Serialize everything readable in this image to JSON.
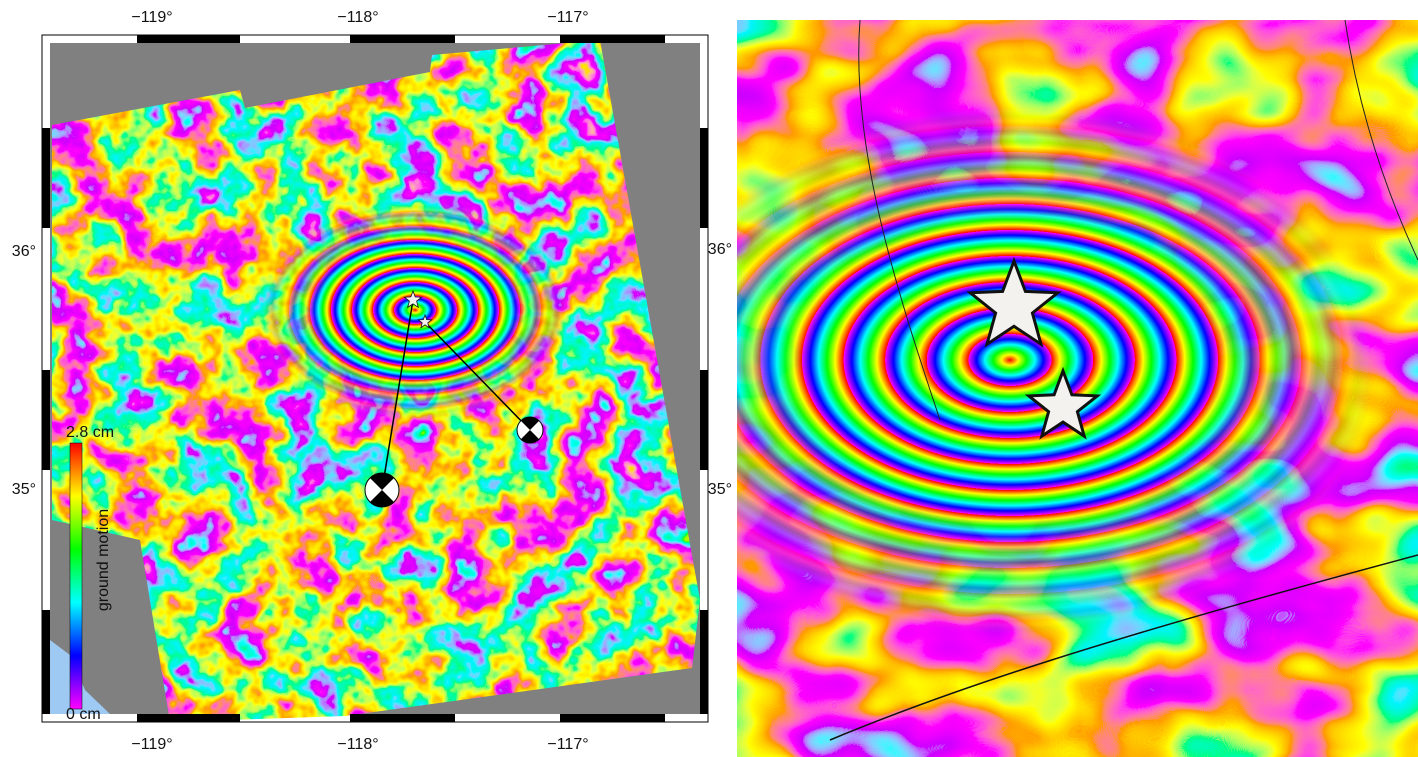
{
  "left_map": {
    "x_labels_top": [
      "−119°",
      "−118°",
      "−117°"
    ],
    "x_labels_bottom": [
      "−119°",
      "−118°",
      "−117°"
    ],
    "y_labels": [
      "36°",
      "35°"
    ],
    "colorbar": {
      "max_label": "2.8 cm",
      "min_label": "0 cm",
      "title": "ground motion"
    }
  },
  "right_map": {
    "y_labels": [
      "36°",
      "35°"
    ]
  }
}
